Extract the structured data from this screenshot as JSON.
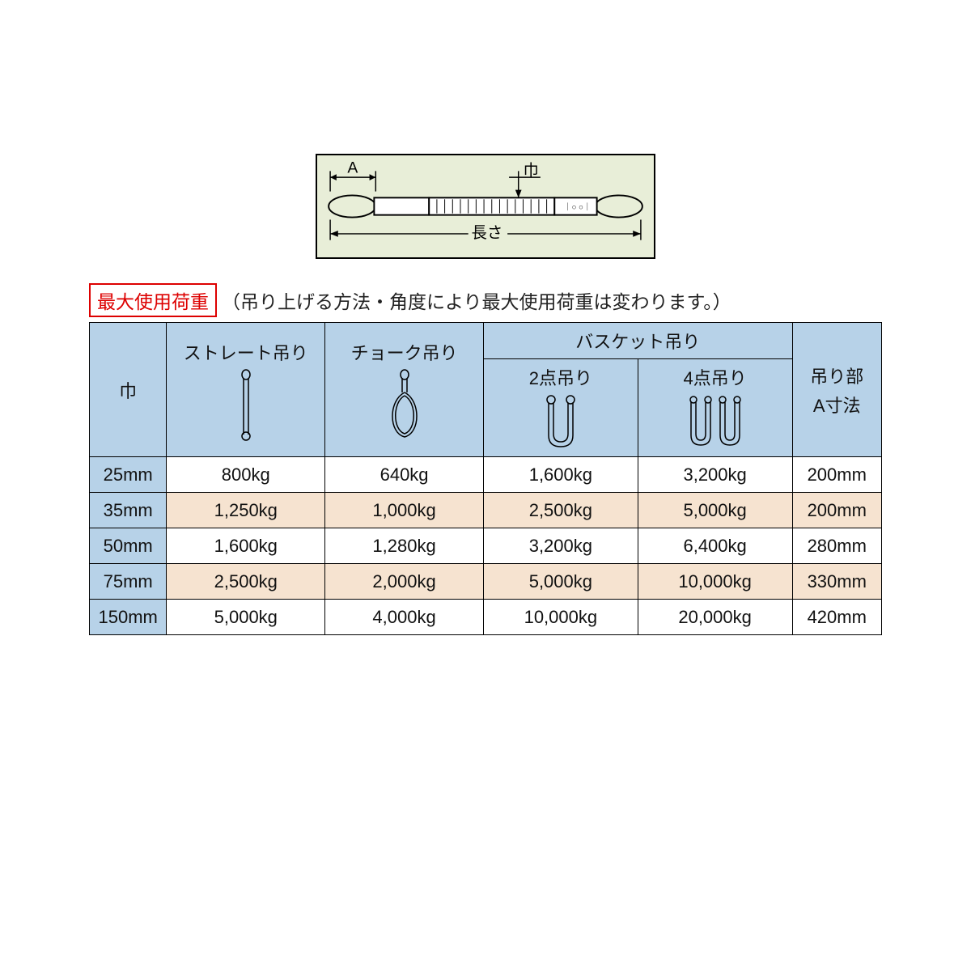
{
  "diagram": {
    "label_a": "A",
    "label_width": "巾",
    "label_length": "長さ",
    "bg": "#e8eed8",
    "stroke": "#000000"
  },
  "heading": {
    "boxed": "最大使用荷重",
    "note": "（吊り上げる方法・角度により最大使用荷重は変わります。）",
    "box_border": "#d00000"
  },
  "table": {
    "header_bg": "#b7d2e8",
    "row_odd_bg": "#ffffff",
    "row_even_bg": "#f6e3d0",
    "border_color": "#000000",
    "columns": {
      "width": "巾",
      "straight": "ストレート吊り",
      "choke": "チョーク吊り",
      "basket_group": "バスケット吊り",
      "basket_2": "2点吊り",
      "basket_4": "4点吊り",
      "a_dim_line1": "吊り部",
      "a_dim_line2": "A寸法"
    },
    "rows": [
      {
        "w": "25mm",
        "straight": "800kg",
        "choke": "640kg",
        "b2": "1,600kg",
        "b4": "3,200kg",
        "a": "200mm"
      },
      {
        "w": "35mm",
        "straight": "1,250kg",
        "choke": "1,000kg",
        "b2": "2,500kg",
        "b4": "5,000kg",
        "a": "200mm"
      },
      {
        "w": "50mm",
        "straight": "1,600kg",
        "choke": "1,280kg",
        "b2": "3,200kg",
        "b4": "6,400kg",
        "a": "280mm"
      },
      {
        "w": "75mm",
        "straight": "2,500kg",
        "choke": "2,000kg",
        "b2": "5,000kg",
        "b4": "10,000kg",
        "a": "330mm"
      },
      {
        "w": "150mm",
        "straight": "5,000kg",
        "choke": "4,000kg",
        "b2": "10,000kg",
        "b4": "20,000kg",
        "a": "420mm"
      }
    ]
  }
}
